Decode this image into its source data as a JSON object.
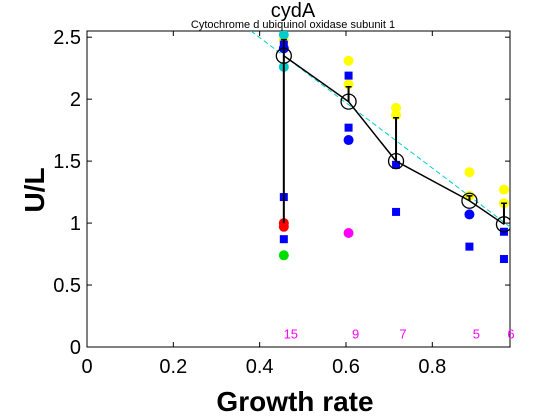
{
  "chart_data": {
    "type": "scatter",
    "title": "cydA",
    "subtitle": "Cytochrome d ubiquinol oxidase subunit 1",
    "xlabel": "Growth rate",
    "ylabel": "U/L",
    "xlim": [
      0,
      0.98
    ],
    "ylim": [
      0,
      2.55
    ],
    "xticks": [
      0,
      0.2,
      0.4,
      0.6,
      0.8
    ],
    "xtick_labels": [
      "0",
      "0.2",
      "0.4",
      "0.6",
      "0.8"
    ],
    "yticks": [
      0,
      0.5,
      1,
      1.5,
      2,
      2.5
    ],
    "ytick_labels": [
      "0",
      "0.5",
      "1",
      "1.5",
      "2",
      "2.5"
    ],
    "grid": false,
    "legend": "none",
    "fit_line": {
      "color": "#00cccc",
      "style": "dashed",
      "points": [
        [
          0.38,
          2.55
        ],
        [
          0.98,
          0.97
        ]
      ]
    },
    "mean_line": {
      "color": "#000000",
      "x": [
        0.456,
        0.606,
        0.716,
        0.886,
        0.966
      ],
      "y": [
        2.35,
        1.98,
        1.5,
        1.18,
        0.99
      ]
    },
    "error_bars": [
      {
        "x": 0.456,
        "low": 1.0,
        "high": 2.48
      },
      {
        "x": 0.606,
        "low": 1.98,
        "high": 2.1
      },
      {
        "x": 0.716,
        "low": 1.5,
        "high": 1.85
      },
      {
        "x": 0.886,
        "low": 1.18,
        "high": 1.22
      },
      {
        "x": 0.966,
        "low": 0.99,
        "high": 1.16
      }
    ],
    "series": [
      {
        "marker": "circle",
        "color": "#ffff00",
        "x": [
          0.456,
          0.606,
          0.716,
          0.886,
          0.966
        ],
        "y": [
          2.48,
          2.31,
          1.93,
          1.41,
          1.27
        ]
      },
      {
        "marker": "circle",
        "color": "#ffff00",
        "x": [
          0.606,
          0.716,
          0.886,
          0.966
        ],
        "y": [
          2.12,
          1.87,
          1.22,
          1.16
        ]
      },
      {
        "marker": "circle",
        "color": "#00cccc",
        "x": [
          0.456,
          0.456
        ],
        "y": [
          2.52,
          2.26
        ]
      },
      {
        "marker": "circle",
        "color": "#0000ff",
        "x": [
          0.456,
          0.606,
          0.886
        ],
        "y": [
          2.41,
          1.67,
          1.07
        ]
      },
      {
        "marker": "square",
        "color": "#0000ff",
        "x": [
          0.456,
          0.456,
          0.456,
          0.606,
          0.606,
          0.716,
          0.716,
          0.886,
          0.966,
          0.966
        ],
        "y": [
          2.44,
          1.21,
          0.87,
          2.19,
          1.77,
          1.47,
          1.09,
          0.81,
          0.93,
          0.71
        ]
      },
      {
        "marker": "circle",
        "color": "#ff0000",
        "x": [
          0.456,
          0.456
        ],
        "y": [
          1.0,
          0.97
        ]
      },
      {
        "marker": "circle",
        "color": "#00dd00",
        "x": [
          0.456
        ],
        "y": [
          0.74
        ]
      },
      {
        "marker": "circle",
        "color": "#ff00ff",
        "x": [
          0.606
        ],
        "y": [
          0.92
        ]
      }
    ],
    "counts": {
      "color": "#ff00ff",
      "y": 0.1,
      "x": [
        0.456,
        0.606,
        0.716,
        0.886,
        0.966
      ],
      "labels": [
        "15",
        "9",
        "7",
        "5",
        "6"
      ]
    }
  }
}
